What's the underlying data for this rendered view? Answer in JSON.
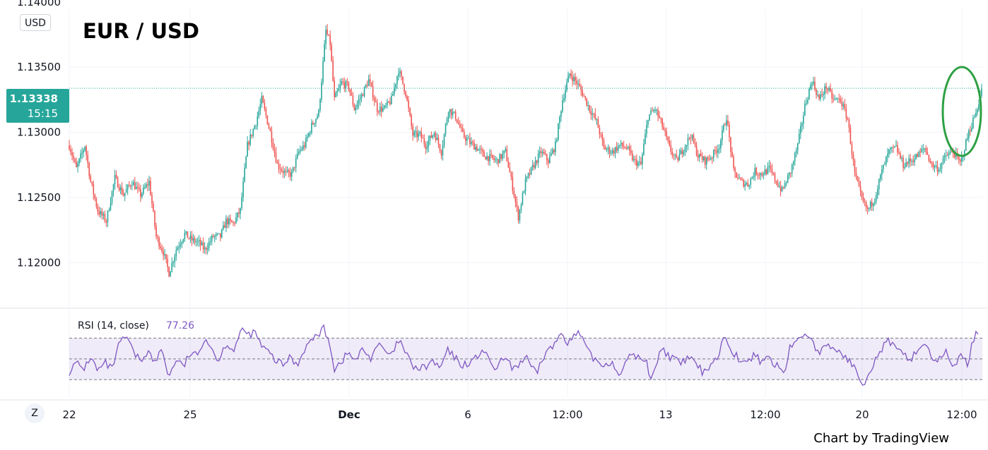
{
  "chart_data": {
    "type": "candlestick",
    "title": "EUR / USD",
    "currency": "USD",
    "price_axis_ticks": [
      "1.13500",
      "1.13000",
      "1.12500",
      "1.12000"
    ],
    "ylim": [
      1.1165,
      1.1395
    ],
    "time_axis_ticks": [
      "22",
      "25",
      "Dec",
      "6",
      "12:00",
      "13",
      "12:00",
      "20",
      "12:00"
    ],
    "current_price": {
      "value": "1.13338",
      "countdown": "15:15"
    },
    "price_path": [
      [
        0,
        1.129
      ],
      [
        10,
        1.1272
      ],
      [
        22,
        1.129
      ],
      [
        30,
        1.1262
      ],
      [
        40,
        1.124
      ],
      [
        52,
        1.1232
      ],
      [
        64,
        1.1265
      ],
      [
        76,
        1.1252
      ],
      [
        88,
        1.1262
      ],
      [
        100,
        1.1252
      ],
      [
        112,
        1.1262
      ],
      [
        122,
        1.122
      ],
      [
        132,
        1.1208
      ],
      [
        140,
        1.1192
      ],
      [
        150,
        1.121
      ],
      [
        162,
        1.1222
      ],
      [
        170,
        1.1218
      ],
      [
        182,
        1.1215
      ],
      [
        190,
        1.121
      ],
      [
        202,
        1.122
      ],
      [
        212,
        1.122
      ],
      [
        220,
        1.1232
      ],
      [
        230,
        1.123
      ],
      [
        240,
        1.124
      ],
      [
        250,
        1.129
      ],
      [
        262,
        1.1308
      ],
      [
        270,
        1.1325
      ],
      [
        282,
        1.13
      ],
      [
        292,
        1.1275
      ],
      [
        304,
        1.1268
      ],
      [
        312,
        1.1268
      ],
      [
        322,
        1.1285
      ],
      [
        330,
        1.129
      ],
      [
        340,
        1.1305
      ],
      [
        350,
        1.1315
      ],
      [
        360,
        1.1378
      ],
      [
        366,
        1.1368
      ],
      [
        372,
        1.1325
      ],
      [
        382,
        1.1338
      ],
      [
        392,
        1.1335
      ],
      [
        400,
        1.1318
      ],
      [
        410,
        1.1328
      ],
      [
        420,
        1.134
      ],
      [
        432,
        1.1318
      ],
      [
        442,
        1.1318
      ],
      [
        452,
        1.1325
      ],
      [
        462,
        1.1348
      ],
      [
        472,
        1.133
      ],
      [
        482,
        1.1298
      ],
      [
        492,
        1.1298
      ],
      [
        500,
        1.129
      ],
      [
        512,
        1.13
      ],
      [
        522,
        1.1285
      ],
      [
        532,
        1.1318
      ],
      [
        542,
        1.1312
      ],
      [
        552,
        1.1298
      ],
      [
        562,
        1.1292
      ],
      [
        572,
        1.1288
      ],
      [
        582,
        1.1282
      ],
      [
        592,
        1.128
      ],
      [
        600,
        1.1278
      ],
      [
        612,
        1.1285
      ],
      [
        622,
        1.1258
      ],
      [
        630,
        1.1235
      ],
      [
        640,
        1.1262
      ],
      [
        652,
        1.1275
      ],
      [
        662,
        1.1285
      ],
      [
        672,
        1.1278
      ],
      [
        682,
        1.129
      ],
      [
        692,
        1.1325
      ],
      [
        702,
        1.1345
      ],
      [
        712,
        1.1338
      ],
      [
        720,
        1.133
      ],
      [
        730,
        1.1318
      ],
      [
        740,
        1.1308
      ],
      [
        750,
        1.1288
      ],
      [
        762,
        1.1285
      ],
      [
        772,
        1.129
      ],
      [
        782,
        1.1288
      ],
      [
        792,
        1.1278
      ],
      [
        802,
        1.1275
      ],
      [
        812,
        1.1312
      ],
      [
        822,
        1.1318
      ],
      [
        832,
        1.1305
      ],
      [
        842,
        1.1288
      ],
      [
        852,
        1.1278
      ],
      [
        862,
        1.1288
      ],
      [
        872,
        1.1298
      ],
      [
        882,
        1.1282
      ],
      [
        892,
        1.1278
      ],
      [
        902,
        1.1282
      ],
      [
        912,
        1.129
      ],
      [
        922,
        1.1312
      ],
      [
        932,
        1.127
      ],
      [
        942,
        1.1262
      ],
      [
        952,
        1.126
      ],
      [
        962,
        1.127
      ],
      [
        972,
        1.1268
      ],
      [
        982,
        1.1272
      ],
      [
        992,
        1.1262
      ],
      [
        1000,
        1.1255
      ],
      [
        1012,
        1.127
      ],
      [
        1022,
        1.129
      ],
      [
        1032,
        1.132
      ],
      [
        1042,
        1.134
      ],
      [
        1052,
        1.1325
      ],
      [
        1062,
        1.1335
      ],
      [
        1072,
        1.1325
      ],
      [
        1082,
        1.1325
      ],
      [
        1092,
        1.131
      ],
      [
        1102,
        1.1268
      ],
      [
        1112,
        1.1248
      ],
      [
        1120,
        1.124
      ],
      [
        1130,
        1.125
      ],
      [
        1140,
        1.127
      ],
      [
        1150,
        1.1285
      ],
      [
        1160,
        1.1288
      ],
      [
        1170,
        1.1275
      ],
      [
        1180,
        1.1278
      ],
      [
        1190,
        1.1282
      ],
      [
        1200,
        1.1288
      ],
      [
        1210,
        1.1275
      ],
      [
        1220,
        1.1272
      ],
      [
        1230,
        1.1282
      ],
      [
        1240,
        1.1285
      ],
      [
        1250,
        1.1276
      ],
      [
        1262,
        1.13
      ],
      [
        1272,
        1.1315
      ],
      [
        1281,
        1.1334
      ]
    ],
    "rsi": {
      "label": "RSI (14, close)",
      "value": "77.26",
      "upper": 70,
      "middle": 50,
      "lower": 30,
      "path": [
        [
          0,
          38
        ],
        [
          10,
          46
        ],
        [
          20,
          40
        ],
        [
          30,
          52
        ],
        [
          40,
          38
        ],
        [
          50,
          46
        ],
        [
          60,
          40
        ],
        [
          70,
          64
        ],
        [
          80,
          72
        ],
        [
          90,
          56
        ],
        [
          100,
          48
        ],
        [
          110,
          58
        ],
        [
          120,
          46
        ],
        [
          130,
          60
        ],
        [
          140,
          32
        ],
        [
          150,
          50
        ],
        [
          160,
          42
        ],
        [
          170,
          56
        ],
        [
          180,
          52
        ],
        [
          190,
          72
        ],
        [
          200,
          60
        ],
        [
          210,
          48
        ],
        [
          220,
          66
        ],
        [
          230,
          58
        ],
        [
          240,
          74
        ],
        [
          246,
          78
        ],
        [
          250,
          72
        ],
        [
          260,
          76
        ],
        [
          270,
          62
        ],
        [
          280,
          56
        ],
        [
          290,
          48
        ],
        [
          300,
          44
        ],
        [
          310,
          52
        ],
        [
          320,
          44
        ],
        [
          330,
          60
        ],
        [
          340,
          68
        ],
        [
          350,
          74
        ],
        [
          356,
          80
        ],
        [
          362,
          72
        ],
        [
          366,
          64
        ],
        [
          372,
          40
        ],
        [
          382,
          48
        ],
        [
          392,
          56
        ],
        [
          402,
          48
        ],
        [
          412,
          60
        ],
        [
          422,
          50
        ],
        [
          432,
          64
        ],
        [
          442,
          58
        ],
        [
          452,
          52
        ],
        [
          462,
          68
        ],
        [
          472,
          56
        ],
        [
          480,
          44
        ],
        [
          490,
          40
        ],
        [
          500,
          42
        ],
        [
          510,
          48
        ],
        [
          520,
          40
        ],
        [
          530,
          58
        ],
        [
          540,
          52
        ],
        [
          550,
          44
        ],
        [
          560,
          46
        ],
        [
          570,
          50
        ],
        [
          580,
          60
        ],
        [
          590,
          46
        ],
        [
          600,
          40
        ],
        [
          610,
          52
        ],
        [
          620,
          42
        ],
        [
          630,
          44
        ],
        [
          640,
          52
        ],
        [
          650,
          40
        ],
        [
          655,
          35
        ],
        [
          660,
          44
        ],
        [
          670,
          58
        ],
        [
          680,
          62
        ],
        [
          690,
          76
        ],
        [
          700,
          66
        ],
        [
          710,
          72
        ],
        [
          715,
          76
        ],
        [
          720,
          68
        ],
        [
          730,
          54
        ],
        [
          740,
          48
        ],
        [
          750,
          44
        ],
        [
          760,
          48
        ],
        [
          770,
          36
        ],
        [
          780,
          44
        ],
        [
          790,
          56
        ],
        [
          800,
          50
        ],
        [
          810,
          46
        ],
        [
          815,
          32
        ],
        [
          820,
          38
        ],
        [
          830,
          60
        ],
        [
          840,
          54
        ],
        [
          850,
          48
        ],
        [
          860,
          46
        ],
        [
          870,
          52
        ],
        [
          880,
          44
        ],
        [
          890,
          36
        ],
        [
          900,
          46
        ],
        [
          910,
          52
        ],
        [
          920,
          74
        ],
        [
          930,
          58
        ],
        [
          940,
          50
        ],
        [
          950,
          44
        ],
        [
          960,
          54
        ],
        [
          970,
          48
        ],
        [
          980,
          52
        ],
        [
          990,
          44
        ],
        [
          1000,
          40
        ],
        [
          1005,
          38
        ],
        [
          1010,
          62
        ],
        [
          1020,
          66
        ],
        [
          1030,
          74
        ],
        [
          1040,
          72
        ],
        [
          1050,
          56
        ],
        [
          1060,
          60
        ],
        [
          1070,
          62
        ],
        [
          1080,
          56
        ],
        [
          1090,
          52
        ],
        [
          1100,
          42
        ],
        [
          1110,
          32
        ],
        [
          1115,
          26
        ],
        [
          1120,
          36
        ],
        [
          1130,
          48
        ],
        [
          1140,
          60
        ],
        [
          1150,
          68
        ],
        [
          1160,
          58
        ],
        [
          1170,
          54
        ],
        [
          1180,
          50
        ],
        [
          1190,
          58
        ],
        [
          1200,
          66
        ],
        [
          1210,
          52
        ],
        [
          1220,
          48
        ],
        [
          1230,
          56
        ],
        [
          1240,
          44
        ],
        [
          1250,
          52
        ],
        [
          1260,
          46
        ],
        [
          1270,
          72
        ],
        [
          1276,
          77
        ]
      ]
    },
    "annotation": {
      "shape": "ellipse",
      "color": "#2ea043"
    },
    "colors": {
      "up": "#26a69a",
      "down": "#ef5350",
      "rsi": "#7e57c2",
      "badge": "#26a69a"
    }
  },
  "credit": "Chart by TradingView",
  "zoom_button": "Z"
}
